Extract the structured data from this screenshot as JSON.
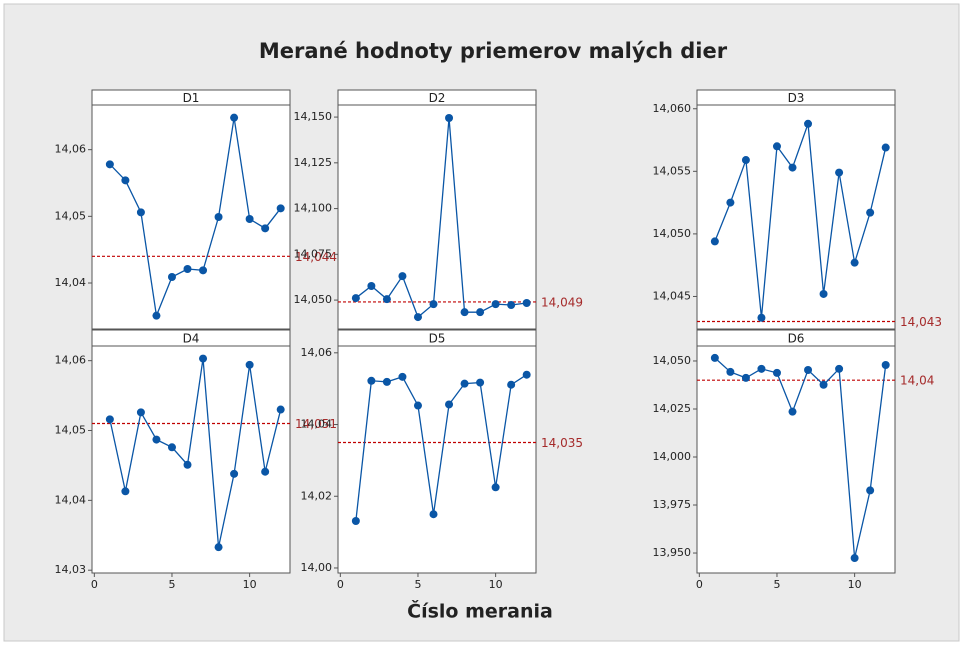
{
  "chart_data": {
    "type": "line",
    "title": "Merané hodnoty priemerov malých dier",
    "xlabel": "Číslo merania",
    "x": [
      1,
      2,
      3,
      4,
      5,
      6,
      7,
      8,
      9,
      10,
      11,
      12
    ],
    "xlim": [
      -0.15,
      12.6
    ],
    "xticks": [
      0,
      5,
      10
    ],
    "color": "#0a56a6",
    "reference_color": "#c00000",
    "panels": [
      {
        "name": "D1",
        "values": [
          14.0578,
          14.0554,
          14.0506,
          14.0351,
          14.0409,
          14.0421,
          14.0419,
          14.0499,
          14.0648,
          14.0496,
          14.0482,
          14.0512
        ],
        "reference": {
          "value": 14.044,
          "label": "14,044"
        },
        "ylim": [
          14.0331,
          14.0667
        ],
        "yticks": [
          {
            "value": 14.04,
            "label": "14,04"
          },
          {
            "value": 14.05,
            "label": "14,05"
          },
          {
            "value": 14.06,
            "label": "14,06"
          }
        ]
      },
      {
        "name": "D2",
        "values": [
          14.0511,
          14.0577,
          14.0505,
          14.0631,
          14.0407,
          14.0478,
          14.1495,
          14.0434,
          14.0434,
          14.0478,
          14.0473,
          14.0484
        ],
        "reference": {
          "value": 14.049,
          "label": "14,049"
        },
        "ylim": [
          14.0342,
          14.1566
        ],
        "yticks": [
          {
            "value": 14.05,
            "label": "14,050"
          },
          {
            "value": 14.075,
            "label": "14,075"
          },
          {
            "value": 14.1,
            "label": "14,100"
          },
          {
            "value": 14.125,
            "label": "14,125"
          },
          {
            "value": 14.15,
            "label": "14,150"
          }
        ]
      },
      {
        "name": "D3",
        "values": [
          14.0494,
          14.0525,
          14.0559,
          14.0433,
          14.057,
          14.0553,
          14.0588,
          14.0452,
          14.0549,
          14.0477,
          14.0517,
          14.0569
        ],
        "reference": {
          "value": 14.043,
          "label": "14,043"
        },
        "ylim": [
          14.0424,
          14.0603
        ],
        "yticks": [
          {
            "value": 14.045,
            "label": "14,045"
          },
          {
            "value": 14.05,
            "label": "14,050"
          },
          {
            "value": 14.055,
            "label": "14,055"
          },
          {
            "value": 14.06,
            "label": "14,060"
          }
        ]
      },
      {
        "name": "D4",
        "values": [
          14.0516,
          14.0413,
          14.0526,
          14.0487,
          14.0476,
          14.0451,
          14.0603,
          14.0333,
          14.0438,
          14.0594,
          14.0441,
          14.053
        ],
        "reference": {
          "value": 14.051,
          "label": "14,051"
        },
        "ylim": [
          14.0296,
          14.0621
        ],
        "yticks": [
          {
            "value": 14.03,
            "label": "14,03"
          },
          {
            "value": 14.04,
            "label": "14,04"
          },
          {
            "value": 14.05,
            "label": "14,05"
          },
          {
            "value": 14.06,
            "label": "14,06"
          }
        ]
      },
      {
        "name": "D5",
        "values": [
          14.0131,
          14.0522,
          14.0519,
          14.0533,
          14.0453,
          14.015,
          14.0456,
          14.0514,
          14.0517,
          14.0225,
          14.0511,
          14.0539
        ],
        "reference": {
          "value": 14.035,
          "label": "14,035"
        },
        "ylim": [
          13.9986,
          14.0619
        ],
        "yticks": [
          {
            "value": 14.0,
            "label": "14,00"
          },
          {
            "value": 14.02,
            "label": "14,02"
          },
          {
            "value": 14.04,
            "label": "14,04"
          },
          {
            "value": 14.06,
            "label": "14,06"
          }
        ]
      },
      {
        "name": "D6",
        "values": [
          14.0516,
          14.0443,
          14.0412,
          14.0459,
          14.0438,
          14.0236,
          14.0453,
          14.0376,
          14.0459,
          13.9474,
          13.9826,
          14.0479
        ],
        "reference": {
          "value": 14.04,
          "label": "14,04"
        },
        "ylim": [
          13.9396,
          14.0578
        ],
        "yticks": [
          {
            "value": 13.95,
            "label": "13,950"
          },
          {
            "value": 13.975,
            "label": "13,975"
          },
          {
            "value": 14.0,
            "label": "14,000"
          },
          {
            "value": 14.025,
            "label": "14,025"
          },
          {
            "value": 14.05,
            "label": "14,050"
          }
        ]
      }
    ]
  }
}
